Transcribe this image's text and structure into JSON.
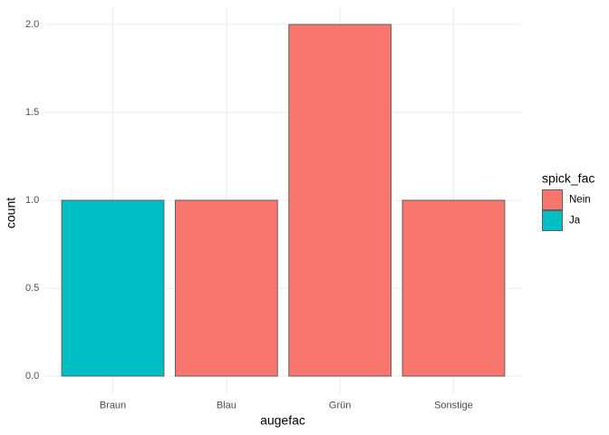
{
  "chart_data": {
    "type": "stacked_bar",
    "x_label": "augefac",
    "y_label": "count",
    "categories": [
      "Braun",
      "Blau",
      "Grün",
      "Sonstige"
    ],
    "series": [
      {
        "name": "Nein",
        "color": "#F8766D",
        "values": [
          0,
          1,
          2,
          1
        ]
      },
      {
        "name": "Ja",
        "color": "#00BFC4",
        "values": [
          1,
          0,
          0,
          0
        ]
      }
    ],
    "legend_title": "spick_fac",
    "ylim": [
      -0.1,
      2.1
    ],
    "yticks": [
      {
        "value": 0,
        "label": "0.0"
      },
      {
        "value": 0.5,
        "label": "0.5"
      },
      {
        "value": 1,
        "label": "1.0"
      },
      {
        "value": 1.5,
        "label": "1.5"
      },
      {
        "value": 2,
        "label": "2.0"
      }
    ],
    "grid": true,
    "legend_position": "right"
  }
}
